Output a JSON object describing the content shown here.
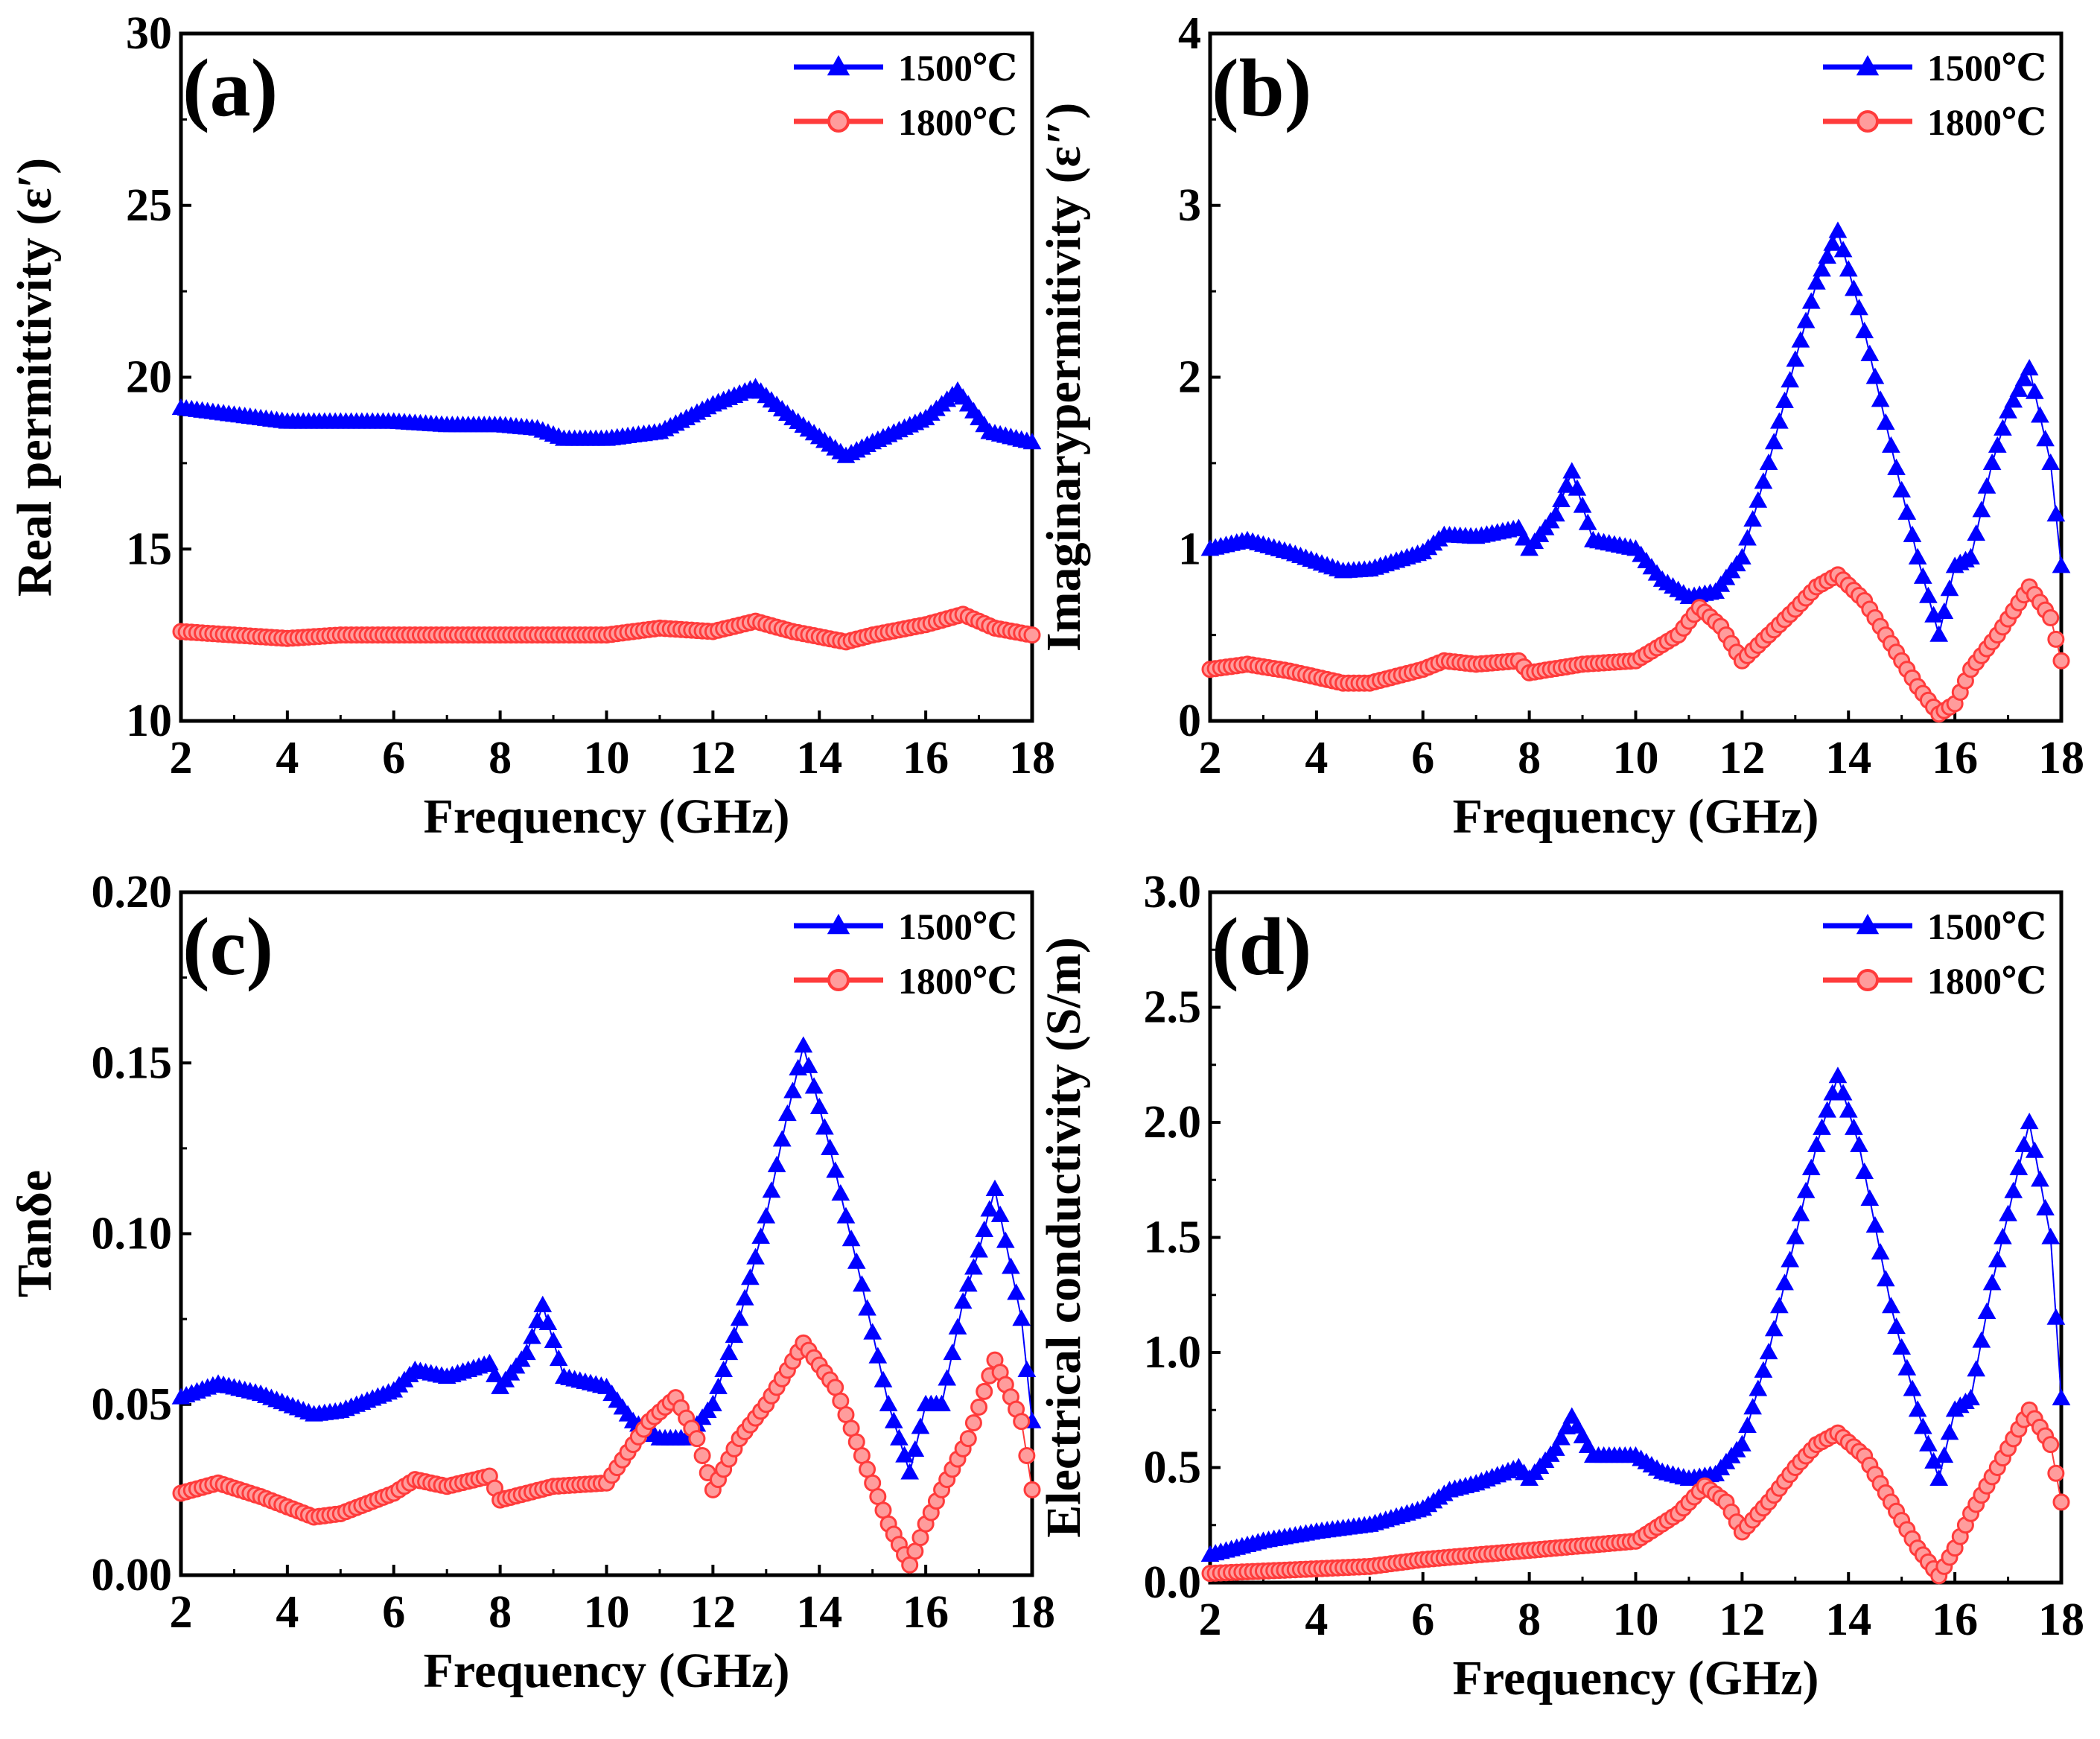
{
  "figure": {
    "colors": {
      "s1500": "#0000ff",
      "s1800": "#ff3b3b",
      "axis": "#000000"
    },
    "series_names": [
      "1500℃",
      "1800℃"
    ]
  },
  "chart_data": [
    {
      "id": "a",
      "type": "line",
      "panel_label": "(a)",
      "xlabel": "Frequency (GHz)",
      "ylabel": "Real  permittivity (ε′)",
      "xlim": [
        2,
        18
      ],
      "ylim": [
        10,
        30
      ],
      "xticks": [
        2,
        4,
        6,
        8,
        10,
        12,
        14,
        16,
        18
      ],
      "yticks": [
        10,
        15,
        20,
        25,
        30
      ],
      "ytick_labels": [
        "10",
        "15",
        "20",
        "25",
        "30"
      ],
      "legend": [
        "1500℃",
        "1800℃"
      ],
      "series": [
        {
          "name": "1500℃",
          "x": [
            2,
            3,
            4,
            5,
            6,
            7,
            8,
            8.7,
            9.2,
            10,
            11,
            12,
            12.8,
            13.5,
            14.5,
            15,
            16,
            16.6,
            17.2,
            18
          ],
          "y": [
            19.1,
            18.9,
            18.7,
            18.7,
            18.7,
            18.6,
            18.6,
            18.5,
            18.2,
            18.2,
            18.4,
            19.2,
            19.7,
            18.8,
            17.7,
            18.1,
            18.8,
            19.6,
            18.4,
            18.1
          ]
        },
        {
          "name": "1800℃",
          "x": [
            2,
            3,
            4,
            5,
            6,
            7,
            8,
            9,
            10,
            11,
            12,
            12.8,
            13.5,
            14.5,
            15,
            16,
            16.7,
            17.3,
            18
          ],
          "y": [
            12.6,
            12.5,
            12.4,
            12.5,
            12.5,
            12.5,
            12.5,
            12.5,
            12.5,
            12.7,
            12.6,
            12.9,
            12.6,
            12.3,
            12.5,
            12.8,
            13.1,
            12.7,
            12.5
          ]
        }
      ]
    },
    {
      "id": "b",
      "type": "line",
      "panel_label": "(b)",
      "xlabel": "Frequency (GHz)",
      "ylabel": "Imaginarypermitivity (ε″)",
      "xlim": [
        2,
        18
      ],
      "ylim": [
        0,
        4
      ],
      "xticks": [
        2,
        4,
        6,
        8,
        10,
        12,
        14,
        16,
        18
      ],
      "yticks": [
        0,
        1,
        2,
        3,
        4
      ],
      "ytick_labels": [
        "0",
        "1",
        "2",
        "3",
        "4"
      ],
      "legend": [
        "1500℃",
        "1800℃"
      ],
      "series": [
        {
          "name": "1500℃",
          "x": [
            2,
            2.7,
            3.5,
            4.5,
            5,
            6,
            6.4,
            7,
            7.8,
            8,
            8.5,
            8.8,
            9.2,
            10,
            10.5,
            11,
            11.5,
            12,
            12.5,
            13,
            13.4,
            13.8,
            14.2,
            14.8,
            15.3,
            15.7,
            16,
            16.3,
            16.7,
            17,
            17.4,
            17.8,
            18
          ],
          "y": [
            1.0,
            1.05,
            0.98,
            0.87,
            0.88,
            0.98,
            1.08,
            1.07,
            1.12,
            1.0,
            1.2,
            1.45,
            1.05,
            1.0,
            0.82,
            0.72,
            0.75,
            0.95,
            1.5,
            2.1,
            2.55,
            2.85,
            2.4,
            1.6,
            0.95,
            0.5,
            0.9,
            0.95,
            1.5,
            1.8,
            2.05,
            1.5,
            0.9
          ]
        },
        {
          "name": "1800℃",
          "x": [
            2,
            2.7,
            3.5,
            4.5,
            5,
            6,
            6.4,
            7,
            7.8,
            8,
            9,
            10,
            10.8,
            11.2,
            11.6,
            12,
            12.5,
            13,
            13.4,
            13.8,
            14.3,
            14.8,
            15.3,
            15.7,
            16,
            16.3,
            16.8,
            17.4,
            17.8,
            18
          ],
          "y": [
            0.3,
            0.33,
            0.29,
            0.22,
            0.22,
            0.3,
            0.35,
            0.33,
            0.35,
            0.28,
            0.33,
            0.35,
            0.5,
            0.66,
            0.55,
            0.35,
            0.5,
            0.65,
            0.78,
            0.85,
            0.7,
            0.45,
            0.2,
            0.04,
            0.1,
            0.3,
            0.5,
            0.78,
            0.6,
            0.35
          ]
        }
      ]
    },
    {
      "id": "c",
      "type": "line",
      "panel_label": "(c)",
      "xlabel": "Frequency (GHz)",
      "ylabel": "Tanδe",
      "xlim": [
        2,
        18
      ],
      "ylim": [
        0,
        0.2
      ],
      "xticks": [
        2,
        4,
        6,
        8,
        10,
        12,
        14,
        16,
        18
      ],
      "yticks": [
        0,
        0.05,
        0.1,
        0.15,
        0.2
      ],
      "ytick_labels": [
        "0.00",
        "0.05",
        "0.10",
        "0.15",
        "0.20"
      ],
      "legend": [
        "1500℃",
        "1800℃"
      ],
      "series": [
        {
          "name": "1500℃",
          "x": [
            2,
            2.7,
            3.5,
            4.5,
            5,
            6,
            6.4,
            7,
            7.8,
            8,
            8.5,
            8.8,
            9.2,
            10,
            10.5,
            11,
            11.5,
            12,
            12.5,
            13,
            13.4,
            13.7,
            14.2,
            14.8,
            15.3,
            15.7,
            16,
            16.3,
            16.7,
            17,
            17.3,
            17.8,
            18
          ],
          "y": [
            0.052,
            0.056,
            0.053,
            0.047,
            0.048,
            0.054,
            0.06,
            0.058,
            0.062,
            0.055,
            0.065,
            0.079,
            0.058,
            0.055,
            0.045,
            0.04,
            0.04,
            0.05,
            0.075,
            0.105,
            0.135,
            0.155,
            0.125,
            0.085,
            0.05,
            0.03,
            0.05,
            0.05,
            0.08,
            0.095,
            0.113,
            0.075,
            0.045
          ]
        },
        {
          "name": "1800℃",
          "x": [
            2,
            2.7,
            3.5,
            4.5,
            5,
            6,
            6.4,
            7,
            7.8,
            8,
            9,
            10,
            10.8,
            11.3,
            11.7,
            12,
            12.5,
            13,
            13.4,
            13.7,
            14.3,
            14.8,
            15.3,
            15.7,
            16,
            16.3,
            16.8,
            17.3,
            17.8,
            18
          ],
          "y": [
            0.024,
            0.027,
            0.023,
            0.017,
            0.018,
            0.024,
            0.028,
            0.026,
            0.029,
            0.022,
            0.026,
            0.027,
            0.045,
            0.052,
            0.04,
            0.025,
            0.04,
            0.05,
            0.06,
            0.068,
            0.055,
            0.035,
            0.015,
            0.003,
            0.015,
            0.025,
            0.04,
            0.063,
            0.045,
            0.025
          ]
        }
      ]
    },
    {
      "id": "d",
      "type": "line",
      "panel_label": "(d)",
      "xlabel": "Frequency (GHz)",
      "ylabel": "Electrical conductivity (S/m)",
      "xlim": [
        2,
        18
      ],
      "ylim": [
        0,
        3
      ],
      "xticks": [
        2,
        4,
        6,
        8,
        10,
        12,
        14,
        16,
        18
      ],
      "yticks": [
        0,
        0.5,
        1,
        1.5,
        2,
        2.5,
        3
      ],
      "ytick_labels": [
        "0.0",
        "0.5",
        "1.0",
        "1.5",
        "2.0",
        "2.5",
        "3.0"
      ],
      "legend": [
        "1500℃",
        "1800℃"
      ],
      "series": [
        {
          "name": "1500℃",
          "x": [
            2,
            3,
            4,
            5,
            6,
            6.5,
            7,
            7.8,
            8,
            8.5,
            8.8,
            9.2,
            10,
            10.5,
            11,
            11.5,
            12,
            12.5,
            13,
            13.4,
            13.8,
            14.2,
            14.8,
            15.3,
            15.7,
            16,
            16.3,
            16.7,
            17,
            17.4,
            17.8,
            18
          ],
          "y": [
            0.12,
            0.18,
            0.22,
            0.25,
            0.32,
            0.4,
            0.43,
            0.5,
            0.45,
            0.58,
            0.72,
            0.55,
            0.55,
            0.48,
            0.45,
            0.47,
            0.6,
            1.0,
            1.5,
            1.9,
            2.2,
            1.9,
            1.2,
            0.75,
            0.45,
            0.75,
            0.8,
            1.3,
            1.6,
            2.0,
            1.5,
            0.8
          ]
        },
        {
          "name": "1800℃",
          "x": [
            2,
            3,
            4,
            5,
            6,
            7,
            8,
            9,
            10,
            10.8,
            11.3,
            11.7,
            12,
            12.5,
            13,
            13.4,
            13.8,
            14.3,
            14.8,
            15.3,
            15.7,
            16,
            16.3,
            16.8,
            17.4,
            17.8,
            18
          ],
          "y": [
            0.04,
            0.05,
            0.06,
            0.07,
            0.1,
            0.12,
            0.14,
            0.16,
            0.18,
            0.3,
            0.42,
            0.35,
            0.22,
            0.35,
            0.5,
            0.6,
            0.65,
            0.55,
            0.35,
            0.15,
            0.03,
            0.15,
            0.3,
            0.5,
            0.75,
            0.6,
            0.35
          ]
        }
      ]
    }
  ]
}
